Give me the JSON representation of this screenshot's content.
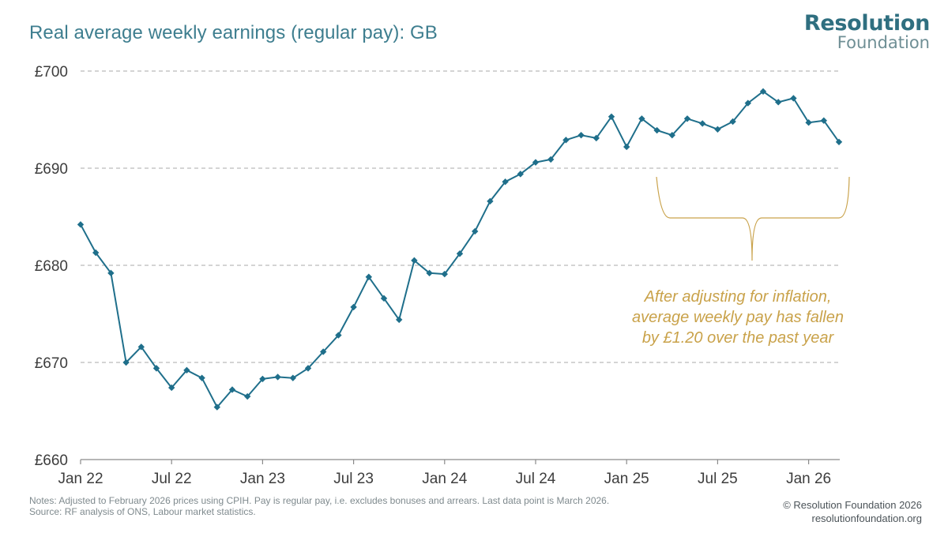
{
  "header": {
    "title": "Real average weekly earnings (regular pay): GB",
    "logo_line1": "Resolution",
    "logo_line2": "Foundation"
  },
  "footer": {
    "notes_line1": "Notes: Adjusted to February 2026 prices using CPIH. Pay is regular pay, i.e. excludes bonuses and arrears. Last data point is March 2026.",
    "notes_line2": "Source: RF analysis of ONS, Labour market statistics.",
    "copyright": "© Resolution Foundation 2026",
    "website": "resolutionfoundation.org"
  },
  "colors": {
    "series": "#1f6f8b",
    "annotation": "#c9a24a",
    "title": "#3e7e8f",
    "grid": "#a8a8a8"
  },
  "chart_data": {
    "type": "line",
    "title": "Real average weekly earnings (regular pay): GB",
    "xlabel": "",
    "ylabel": "",
    "ylim": [
      660,
      700
    ],
    "yticks": [
      660,
      670,
      680,
      690,
      700
    ],
    "ytick_labels": [
      "£660",
      "£670",
      "£680",
      "£690",
      "£700"
    ],
    "xtick_labels": [
      "Jan 22",
      "Jul 22",
      "Jan 23",
      "Jul 23",
      "Jan 24",
      "Jul 24",
      "Jan 25",
      "Jul 25",
      "Jan 26"
    ],
    "grid": "horizontal dashed",
    "x_start": "Jan 2022",
    "x_end": "Mar 2026",
    "series": [
      {
        "values": [
          684.2,
          681.3,
          679.2,
          670.0,
          671.6,
          669.4,
          667.4,
          669.2,
          668.4,
          665.4,
          667.2,
          666.5,
          668.3,
          668.5,
          668.4,
          669.4,
          671.1,
          672.8,
          675.7,
          678.8,
          676.6,
          674.4,
          680.5,
          679.2,
          679.1,
          681.2,
          683.5,
          686.6,
          688.6,
          689.4,
          690.6,
          690.9,
          692.9,
          693.4,
          693.1,
          695.3,
          692.2,
          695.1,
          693.9,
          693.4,
          695.1,
          694.6,
          694.0,
          694.8,
          696.7,
          697.9,
          696.8,
          697.2,
          694.7,
          694.9,
          692.7
        ]
      }
    ],
    "annotation": {
      "line1": "After adjusting for inflation,",
      "line2": "average weekly pay has fallen",
      "line3": "by £1.20 over the past year"
    }
  }
}
